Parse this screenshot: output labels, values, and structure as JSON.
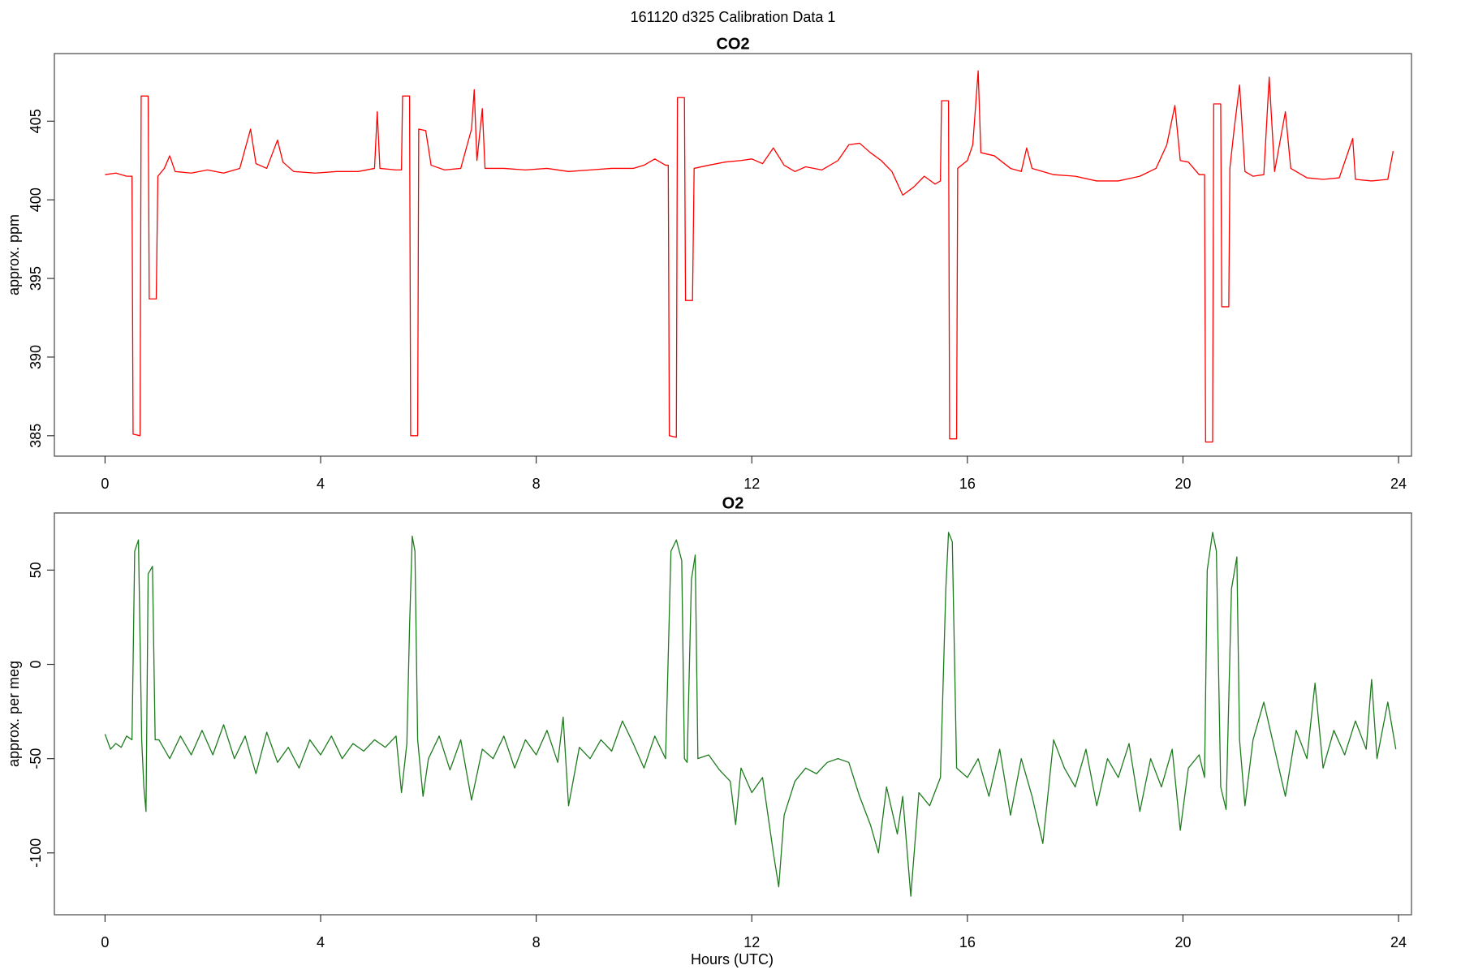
{
  "title": "161120   d325   Calibration Data 1",
  "chart_data": [
    {
      "type": "line",
      "title": "CO2",
      "ylabel": "approx. ppm",
      "xlim": [
        -0.94,
        24.24
      ],
      "xticks": [
        0,
        4,
        8,
        12,
        16,
        20,
        24
      ],
      "ylim": [
        383.7,
        409.3
      ],
      "yticks": [
        385,
        390,
        395,
        400,
        405
      ],
      "series": [
        {
          "name": "CO2",
          "color": "#ff0000",
          "x": [
            0,
            0.2,
            0.4,
            0.5,
            0.52,
            0.65,
            0.67,
            0.8,
            0.82,
            0.95,
            0.98,
            1.1,
            1.2,
            1.3,
            1.6,
            1.9,
            2.2,
            2.5,
            2.7,
            2.8,
            3.0,
            3.2,
            3.3,
            3.5,
            3.9,
            4.3,
            4.7,
            5.0,
            5.05,
            5.1,
            5.4,
            5.5,
            5.52,
            5.65,
            5.67,
            5.8,
            5.82,
            5.95,
            6.05,
            6.3,
            6.6,
            6.8,
            6.85,
            6.9,
            7.0,
            7.05,
            7.4,
            7.8,
            8.2,
            8.6,
            9.0,
            9.4,
            9.8,
            10.0,
            10.2,
            10.4,
            10.45,
            10.47,
            10.6,
            10.62,
            10.75,
            10.77,
            10.9,
            10.93,
            11.2,
            11.5,
            11.8,
            12.0,
            12.2,
            12.4,
            12.6,
            12.8,
            13.0,
            13.3,
            13.6,
            13.8,
            14.0,
            14.2,
            14.4,
            14.6,
            14.8,
            15.0,
            15.2,
            15.4,
            15.5,
            15.52,
            15.65,
            15.67,
            15.8,
            15.82,
            16.0,
            16.1,
            16.2,
            16.25,
            16.5,
            16.8,
            17.0,
            17.1,
            17.2,
            17.6,
            18.0,
            18.4,
            18.8,
            19.2,
            19.5,
            19.7,
            19.85,
            19.95,
            20.1,
            20.3,
            20.4,
            20.42,
            20.55,
            20.57,
            20.7,
            20.72,
            20.85,
            20.87,
            20.95,
            21.05,
            21.15,
            21.3,
            21.5,
            21.6,
            21.7,
            21.9,
            22.0,
            22.3,
            22.6,
            22.9,
            23.15,
            23.2,
            23.5,
            23.8,
            23.9
          ],
          "values": [
            401.6,
            401.7,
            401.5,
            401.5,
            385.1,
            385.0,
            406.6,
            406.6,
            393.7,
            393.7,
            401.5,
            402.0,
            402.8,
            401.8,
            401.7,
            401.9,
            401.7,
            402.0,
            404.5,
            402.3,
            402.0,
            403.8,
            402.4,
            401.8,
            401.7,
            401.8,
            401.8,
            402.0,
            405.6,
            402.0,
            401.9,
            401.9,
            406.6,
            406.6,
            385.0,
            385.0,
            404.5,
            404.4,
            402.2,
            401.9,
            402.0,
            404.5,
            407.0,
            402.5,
            405.8,
            402.0,
            402.0,
            401.9,
            402.0,
            401.8,
            401.9,
            402.0,
            402.0,
            402.2,
            402.6,
            402.2,
            402.2,
            385.0,
            384.9,
            406.5,
            406.5,
            393.6,
            393.6,
            402.0,
            402.2,
            402.4,
            402.5,
            402.6,
            402.3,
            403.3,
            402.2,
            401.8,
            402.1,
            401.9,
            402.5,
            403.5,
            403.6,
            403.0,
            402.5,
            401.8,
            400.3,
            400.8,
            401.5,
            401.0,
            401.2,
            406.3,
            406.3,
            384.8,
            384.8,
            402.0,
            402.5,
            403.5,
            408.2,
            403.0,
            402.8,
            402.0,
            401.8,
            403.3,
            402.0,
            401.6,
            401.5,
            401.2,
            401.2,
            401.5,
            402.0,
            403.5,
            406.0,
            402.5,
            402.4,
            401.6,
            401.6,
            384.6,
            384.6,
            406.1,
            406.1,
            393.2,
            393.2,
            402.0,
            404.5,
            407.3,
            401.8,
            401.5,
            401.6,
            407.8,
            401.8,
            405.6,
            402.0,
            401.4,
            401.3,
            401.4,
            403.9,
            401.3,
            401.2,
            401.3,
            403.1
          ]
        }
      ]
    },
    {
      "type": "line",
      "title": "O2",
      "ylabel": "approx. per meg",
      "xlabel": "Hours (UTC)",
      "xlim": [
        -0.94,
        24.24
      ],
      "xticks": [
        0,
        4,
        8,
        12,
        16,
        20,
        24
      ],
      "ylim": [
        -132.8,
        80.3
      ],
      "yticks": [
        -100,
        -50,
        0,
        50
      ],
      "series": [
        {
          "name": "O2",
          "color": "#1e7b1e",
          "x": [
            0,
            0.1,
            0.2,
            0.3,
            0.4,
            0.5,
            0.55,
            0.62,
            0.68,
            0.72,
            0.76,
            0.8,
            0.88,
            0.93,
            1.0,
            1.2,
            1.4,
            1.6,
            1.8,
            2.0,
            2.2,
            2.4,
            2.6,
            2.8,
            3.0,
            3.2,
            3.4,
            3.6,
            3.8,
            4.0,
            4.2,
            4.4,
            4.6,
            4.8,
            5.0,
            5.2,
            5.4,
            5.5,
            5.6,
            5.65,
            5.7,
            5.75,
            5.8,
            5.9,
            6.0,
            6.2,
            6.4,
            6.6,
            6.8,
            7.0,
            7.2,
            7.4,
            7.6,
            7.8,
            8.0,
            8.2,
            8.4,
            8.5,
            8.6,
            8.8,
            9.0,
            9.2,
            9.4,
            9.6,
            9.8,
            10.0,
            10.2,
            10.4,
            10.5,
            10.6,
            10.7,
            10.75,
            10.8,
            10.88,
            10.95,
            11.0,
            11.2,
            11.4,
            11.6,
            11.7,
            11.8,
            12.0,
            12.2,
            12.4,
            12.5,
            12.6,
            12.8,
            13.0,
            13.2,
            13.4,
            13.6,
            13.8,
            14.0,
            14.2,
            14.35,
            14.5,
            14.7,
            14.8,
            14.95,
            15.1,
            15.3,
            15.5,
            15.6,
            15.65,
            15.72,
            15.8,
            16.0,
            16.2,
            16.4,
            16.6,
            16.8,
            17.0,
            17.2,
            17.4,
            17.6,
            17.8,
            18.0,
            18.2,
            18.4,
            18.6,
            18.8,
            19.0,
            19.2,
            19.4,
            19.6,
            19.8,
            19.95,
            20.1,
            20.3,
            20.4,
            20.45,
            20.55,
            20.62,
            20.7,
            20.8,
            20.9,
            21.0,
            21.05,
            21.15,
            21.3,
            21.5,
            21.7,
            21.9,
            22.1,
            22.3,
            22.45,
            22.6,
            22.8,
            23.0,
            23.2,
            23.4,
            23.5,
            23.6,
            23.8,
            23.95
          ],
          "values": [
            -37,
            -45,
            -42,
            -44,
            -38,
            -40,
            60,
            66,
            -40,
            -65,
            -78,
            48,
            52,
            -40,
            -40,
            -50,
            -38,
            -48,
            -35,
            -48,
            -32,
            -50,
            -38,
            -58,
            -36,
            -52,
            -44,
            -55,
            -40,
            -48,
            -38,
            -50,
            -42,
            -46,
            -40,
            -44,
            -38,
            -68,
            -42,
            20,
            68,
            60,
            -40,
            -70,
            -50,
            -38,
            -56,
            -40,
            -72,
            -45,
            -50,
            -38,
            -55,
            -40,
            -48,
            -35,
            -52,
            -28,
            -75,
            -44,
            -50,
            -40,
            -46,
            -30,
            -42,
            -55,
            -38,
            -50,
            60,
            66,
            55,
            -50,
            -52,
            45,
            58,
            -50,
            -48,
            -56,
            -62,
            -85,
            -55,
            -68,
            -60,
            -100,
            -118,
            -80,
            -62,
            -55,
            -58,
            -52,
            -50,
            -52,
            -70,
            -85,
            -100,
            -65,
            -90,
            -70,
            -123,
            -68,
            -75,
            -60,
            40,
            70,
            65,
            -55,
            -60,
            -50,
            -70,
            -45,
            -80,
            -50,
            -70,
            -95,
            -40,
            -55,
            -65,
            -45,
            -75,
            -50,
            -60,
            -42,
            -78,
            -50,
            -65,
            -45,
            -88,
            -55,
            -48,
            -60,
            50,
            70,
            60,
            -65,
            -77,
            40,
            57,
            -40,
            -75,
            -40,
            -20,
            -45,
            -70,
            -35,
            -50,
            -10,
            -55,
            -35,
            -48,
            -30,
            -45,
            -8,
            -50,
            -20,
            -45
          ]
        }
      ]
    }
  ]
}
